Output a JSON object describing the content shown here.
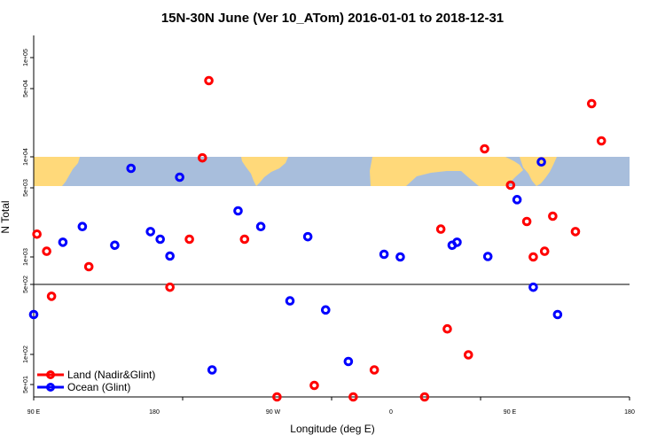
{
  "chart_data": {
    "type": "scatter",
    "title": "15N-30N June (Ver 10_ATom)   2016-01-01 to 2018-12-31",
    "xlabel": "Longitude (deg E)",
    "ylabel": "N Total",
    "xlim": [
      90,
      450
    ],
    "x_ticks": [
      {
        "value": 90,
        "label": "90 E"
      },
      {
        "value": 180,
        "label": "180"
      },
      {
        "value": 270,
        "label": "90 W"
      },
      {
        "value": 360,
        "label": "0"
      },
      {
        "value": 450,
        "label": "90 E"
      },
      {
        "value": 540,
        "label": "180"
      }
    ],
    "y_ticks": [
      "5e+01",
      "1e+02",
      "5e+02",
      "1e+03",
      "5e+03",
      "1e+04",
      "5e+04",
      "1e+05"
    ],
    "legend": {
      "placement": "bottom-left",
      "entries": [
        {
          "label": "Land (Nadir&Glint)",
          "color": "#ff0000"
        },
        {
          "label": "Ocean (Glint)",
          "color": "#0000ff"
        }
      ]
    },
    "colors": {
      "land_series": "#ff0000",
      "ocean_series": "#0000ff",
      "map_ocean": "#a8bedc",
      "map_land": "#ffd97a"
    },
    "series": [
      {
        "name": "Land (Nadir&Glint)",
        "points": [
          {
            "x": 92,
            "y": 5.2
          },
          {
            "x": 98,
            "y": 4.6
          },
          {
            "x": 101,
            "y": 3.4
          },
          {
            "x": 124,
            "y": 3.9
          },
          {
            "x": 174,
            "y": 3.6
          },
          {
            "x": 186,
            "y": 5.0
          },
          {
            "x": 194,
            "y": 7.6
          },
          {
            "x": 198,
            "y": 11.0
          },
          {
            "x": 220,
            "y": 5.0
          },
          {
            "x": 240,
            "y": 0.56
          },
          {
            "x": 263,
            "y": 0.7
          },
          {
            "x": 287,
            "y": 0.6
          },
          {
            "x": 300,
            "y": 1.05
          },
          {
            "x": 331,
            "y": 0.56
          },
          {
            "x": 341,
            "y": 5.4
          },
          {
            "x": 345,
            "y": 2.4
          },
          {
            "x": 358,
            "y": 1.45
          },
          {
            "x": 368,
            "y": 7.8
          },
          {
            "x": 384,
            "y": 6.4
          },
          {
            "x": 394,
            "y": 5.7
          },
          {
            "x": 398,
            "y": 4.2
          },
          {
            "x": 405,
            "y": 4.6
          },
          {
            "x": 410,
            "y": 5.8
          },
          {
            "x": 424,
            "y": 5.3
          },
          {
            "x": 434,
            "y": 8.7
          },
          {
            "x": 440,
            "y": 7.9
          }
        ]
      },
      {
        "name": "Ocean (Glint)",
        "points": [
          {
            "x": 90,
            "y": 3.0
          },
          {
            "x": 108,
            "y": 4.9
          },
          {
            "x": 120,
            "y": 5.5
          },
          {
            "x": 140,
            "y": 4.8
          },
          {
            "x": 150,
            "y": 6.9
          },
          {
            "x": 162,
            "y": 5.3
          },
          {
            "x": 168,
            "y": 5.0
          },
          {
            "x": 174,
            "y": 4.3
          },
          {
            "x": 180,
            "y": 6.7
          },
          {
            "x": 200,
            "y": 1.05
          },
          {
            "x": 216,
            "y": 5.9
          },
          {
            "x": 230,
            "y": 5.5
          },
          {
            "x": 248,
            "y": 3.3
          },
          {
            "x": 259,
            "y": 5.1
          },
          {
            "x": 270,
            "y": 3.1
          },
          {
            "x": 284,
            "y": 1.24
          },
          {
            "x": 306,
            "y": 4.5
          },
          {
            "x": 316,
            "y": 4.2
          },
          {
            "x": 348,
            "y": 4.8
          },
          {
            "x": 351,
            "y": 4.9
          },
          {
            "x": 370,
            "y": 4.25
          },
          {
            "x": 388,
            "y": 6.1
          },
          {
            "x": 398,
            "y": 3.6
          },
          {
            "x": 403,
            "y": 7.2
          },
          {
            "x": 413,
            "y": 3.0
          }
        ]
      }
    ]
  }
}
